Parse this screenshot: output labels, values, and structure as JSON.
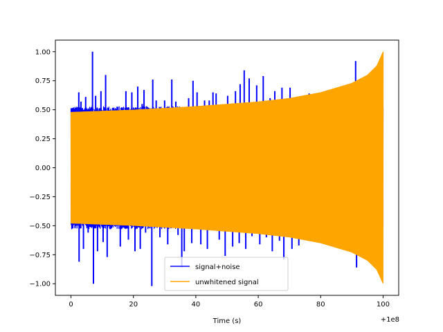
{
  "chart_data": {
    "type": "line",
    "xlabel": "Time (s)",
    "ylabel": "",
    "x_offset_label": "+1e8",
    "xlim": [
      -5,
      105
    ],
    "ylim": [
      -1.1,
      1.1
    ],
    "x_ticks": [
      0,
      20,
      40,
      60,
      80,
      100
    ],
    "x_tick_labels": [
      "0",
      "20",
      "40",
      "60",
      "80",
      "100"
    ],
    "y_ticks": [
      -1.0,
      -0.75,
      -0.5,
      -0.25,
      0.0,
      0.25,
      0.5,
      0.75,
      1.0
    ],
    "y_tick_labels": [
      "−1.00",
      "−0.75",
      "−0.50",
      "−0.25",
      "0.00",
      "0.25",
      "0.50",
      "0.75",
      "1.00"
    ],
    "grid": false,
    "legend_position": "lower center",
    "series": [
      {
        "name": "signal+noise",
        "color": "#0000ff",
        "x_range": [
          0,
          100
        ],
        "noise_floor_abs": 0.52,
        "peak_abs_max": 1.0,
        "spikes": [
          {
            "x": 2.5,
            "y": 0.65
          },
          {
            "x": 2.6,
            "y": -0.81
          },
          {
            "x": 3.2,
            "y": 0.57
          },
          {
            "x": 4.0,
            "y": -0.7
          },
          {
            "x": 4.7,
            "y": 0.61
          },
          {
            "x": 5.5,
            "y": -0.56
          },
          {
            "x": 6.9,
            "y": 1.0
          },
          {
            "x": 7.2,
            "y": -1.0
          },
          {
            "x": 7.9,
            "y": 0.62
          },
          {
            "x": 8.5,
            "y": -0.72
          },
          {
            "x": 9.6,
            "y": 0.66
          },
          {
            "x": 10.3,
            "y": -0.64
          },
          {
            "x": 11.1,
            "y": 0.8
          },
          {
            "x": 11.6,
            "y": -0.77
          },
          {
            "x": 13.3,
            "y": 0.5
          },
          {
            "x": 15.8,
            "y": -0.68
          },
          {
            "x": 16.4,
            "y": 0.52
          },
          {
            "x": 17.6,
            "y": 0.66
          },
          {
            "x": 18.4,
            "y": -0.62
          },
          {
            "x": 19.5,
            "y": 0.65
          },
          {
            "x": 20.5,
            "y": -0.72
          },
          {
            "x": 21.4,
            "y": 0.7
          },
          {
            "x": 22.2,
            "y": -0.7
          },
          {
            "x": 22.8,
            "y": 0.55
          },
          {
            "x": 23.4,
            "y": 0.67
          },
          {
            "x": 23.9,
            "y": -0.56
          },
          {
            "x": 25.9,
            "y": -1.02
          },
          {
            "x": 26.2,
            "y": 0.76
          },
          {
            "x": 27.3,
            "y": 0.58
          },
          {
            "x": 28.5,
            "y": -0.6
          },
          {
            "x": 30.0,
            "y": 0.58
          },
          {
            "x": 31.0,
            "y": -0.66
          },
          {
            "x": 32.3,
            "y": 0.76
          },
          {
            "x": 33.6,
            "y": 0.57
          },
          {
            "x": 34.3,
            "y": -0.58
          },
          {
            "x": 35.5,
            "y": -0.86
          },
          {
            "x": 36.3,
            "y": -0.72
          },
          {
            "x": 37.7,
            "y": 0.6
          },
          {
            "x": 38.7,
            "y": -0.65
          },
          {
            "x": 39.1,
            "y": 0.75
          },
          {
            "x": 40.4,
            "y": 0.65
          },
          {
            "x": 41.6,
            "y": -0.66
          },
          {
            "x": 42.8,
            "y": 0.58
          },
          {
            "x": 43.7,
            "y": -0.7
          },
          {
            "x": 44.3,
            "y": 0.58
          },
          {
            "x": 45.5,
            "y": 0.65
          },
          {
            "x": 46.5,
            "y": 0.64
          },
          {
            "x": 47.5,
            "y": -0.62
          },
          {
            "x": 49.4,
            "y": -0.76
          },
          {
            "x": 50.2,
            "y": 0.62
          },
          {
            "x": 51.8,
            "y": -0.68
          },
          {
            "x": 52.7,
            "y": 0.66
          },
          {
            "x": 53.9,
            "y": -0.65
          },
          {
            "x": 54.2,
            "y": 0.72
          },
          {
            "x": 55.5,
            "y": 0.84
          },
          {
            "x": 56.0,
            "y": -0.7
          },
          {
            "x": 57.1,
            "y": 0.77
          },
          {
            "x": 58.0,
            "y": -0.59
          },
          {
            "x": 59.5,
            "y": 0.71
          },
          {
            "x": 60.5,
            "y": -0.66
          },
          {
            "x": 61.6,
            "y": 0.79
          },
          {
            "x": 62.6,
            "y": -0.6
          },
          {
            "x": 63.8,
            "y": 0.6
          },
          {
            "x": 64.5,
            "y": -0.72
          },
          {
            "x": 65.3,
            "y": 0.66
          },
          {
            "x": 66.8,
            "y": -0.63
          },
          {
            "x": 67.6,
            "y": 0.69
          },
          {
            "x": 68.2,
            "y": -0.79
          },
          {
            "x": 70.2,
            "y": 0.69
          },
          {
            "x": 70.8,
            "y": -0.7
          },
          {
            "x": 71.4,
            "y": 0.57
          },
          {
            "x": 73.0,
            "y": -0.67
          },
          {
            "x": 74.0,
            "y": 0.62
          },
          {
            "x": 75.0,
            "y": -0.6
          },
          {
            "x": 76.3,
            "y": 0.64
          },
          {
            "x": 77.5,
            "y": -0.62
          },
          {
            "x": 79.0,
            "y": 0.62
          },
          {
            "x": 80.5,
            "y": -0.64
          },
          {
            "x": 81.5,
            "y": 0.65
          },
          {
            "x": 82.5,
            "y": -0.66
          },
          {
            "x": 84.0,
            "y": 0.66
          },
          {
            "x": 85.5,
            "y": -0.66
          },
          {
            "x": 87.0,
            "y": 0.67
          },
          {
            "x": 88.5,
            "y": -0.7
          },
          {
            "x": 90.0,
            "y": 0.73
          },
          {
            "x": 91.2,
            "y": 0.92
          },
          {
            "x": 91.5,
            "y": -0.86
          },
          {
            "x": 93.0,
            "y": 0.75
          },
          {
            "x": 95.0,
            "y": -0.8
          }
        ]
      },
      {
        "name": "unwhitened signal",
        "color": "#ffa500",
        "x_range": [
          0,
          100
        ],
        "envelope": [
          [
            0,
            0.48
          ],
          [
            20,
            0.5
          ],
          [
            40,
            0.53
          ],
          [
            60,
            0.57
          ],
          [
            70,
            0.6
          ],
          [
            80,
            0.65
          ],
          [
            90,
            0.73
          ],
          [
            95,
            0.8
          ],
          [
            98,
            0.88
          ],
          [
            100,
            1.0
          ]
        ]
      }
    ]
  }
}
